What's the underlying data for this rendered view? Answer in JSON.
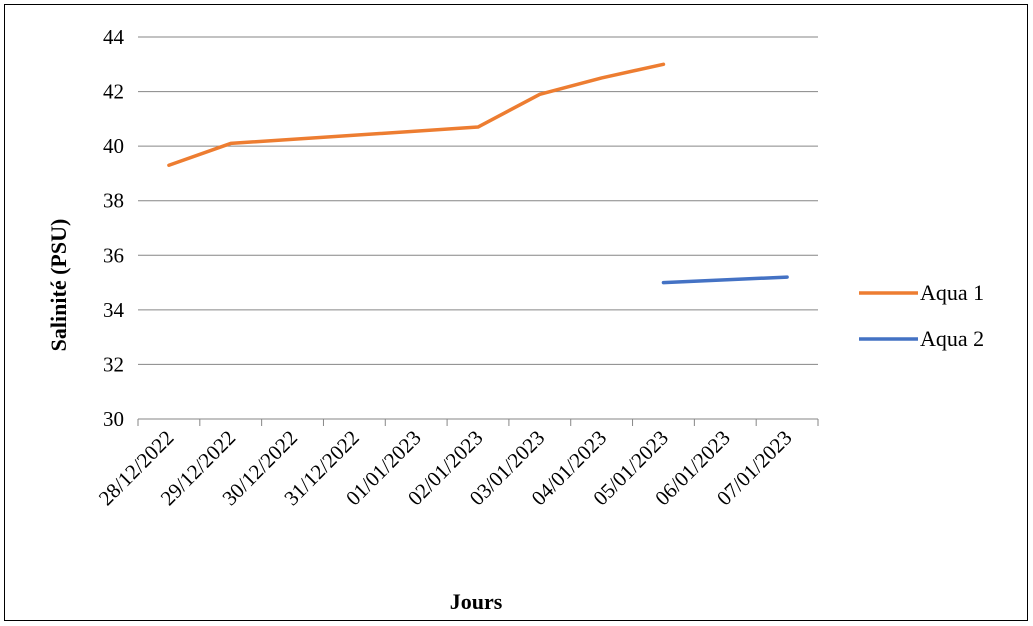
{
  "chart_data": {
    "type": "line",
    "title": "",
    "xlabel": "Jours",
    "ylabel": "Salinité (PSU)",
    "categories": [
      "28/12/2022",
      "29/12/2022",
      "30/12/2022",
      "31/12/2022",
      "01/01/2023",
      "02/01/2023",
      "03/01/2023",
      "04/01/2023",
      "05/01/2023",
      "06/01/2023",
      "07/01/2023"
    ],
    "ylim": [
      30,
      44
    ],
    "yticks": [
      30,
      32,
      34,
      36,
      38,
      40,
      42,
      44
    ],
    "grid": true,
    "legend_position": "right",
    "series": [
      {
        "name": "Aqua 1",
        "color": "#ED7D31",
        "points": [
          {
            "x": "28/12/2022",
            "y": 39.3
          },
          {
            "x": "29/12/2022",
            "y": 40.1
          },
          {
            "x": "02/01/2023",
            "y": 40.7
          },
          {
            "x": "03/01/2023",
            "y": 41.9
          },
          {
            "x": "04/01/2023",
            "y": 42.5
          },
          {
            "x": "05/01/2023",
            "y": 43.0
          }
        ]
      },
      {
        "name": "Aqua 2",
        "color": "#4472C4",
        "points": [
          {
            "x": "05/01/2023",
            "y": 35.0
          },
          {
            "x": "07/01/2023",
            "y": 35.2
          }
        ]
      }
    ]
  }
}
